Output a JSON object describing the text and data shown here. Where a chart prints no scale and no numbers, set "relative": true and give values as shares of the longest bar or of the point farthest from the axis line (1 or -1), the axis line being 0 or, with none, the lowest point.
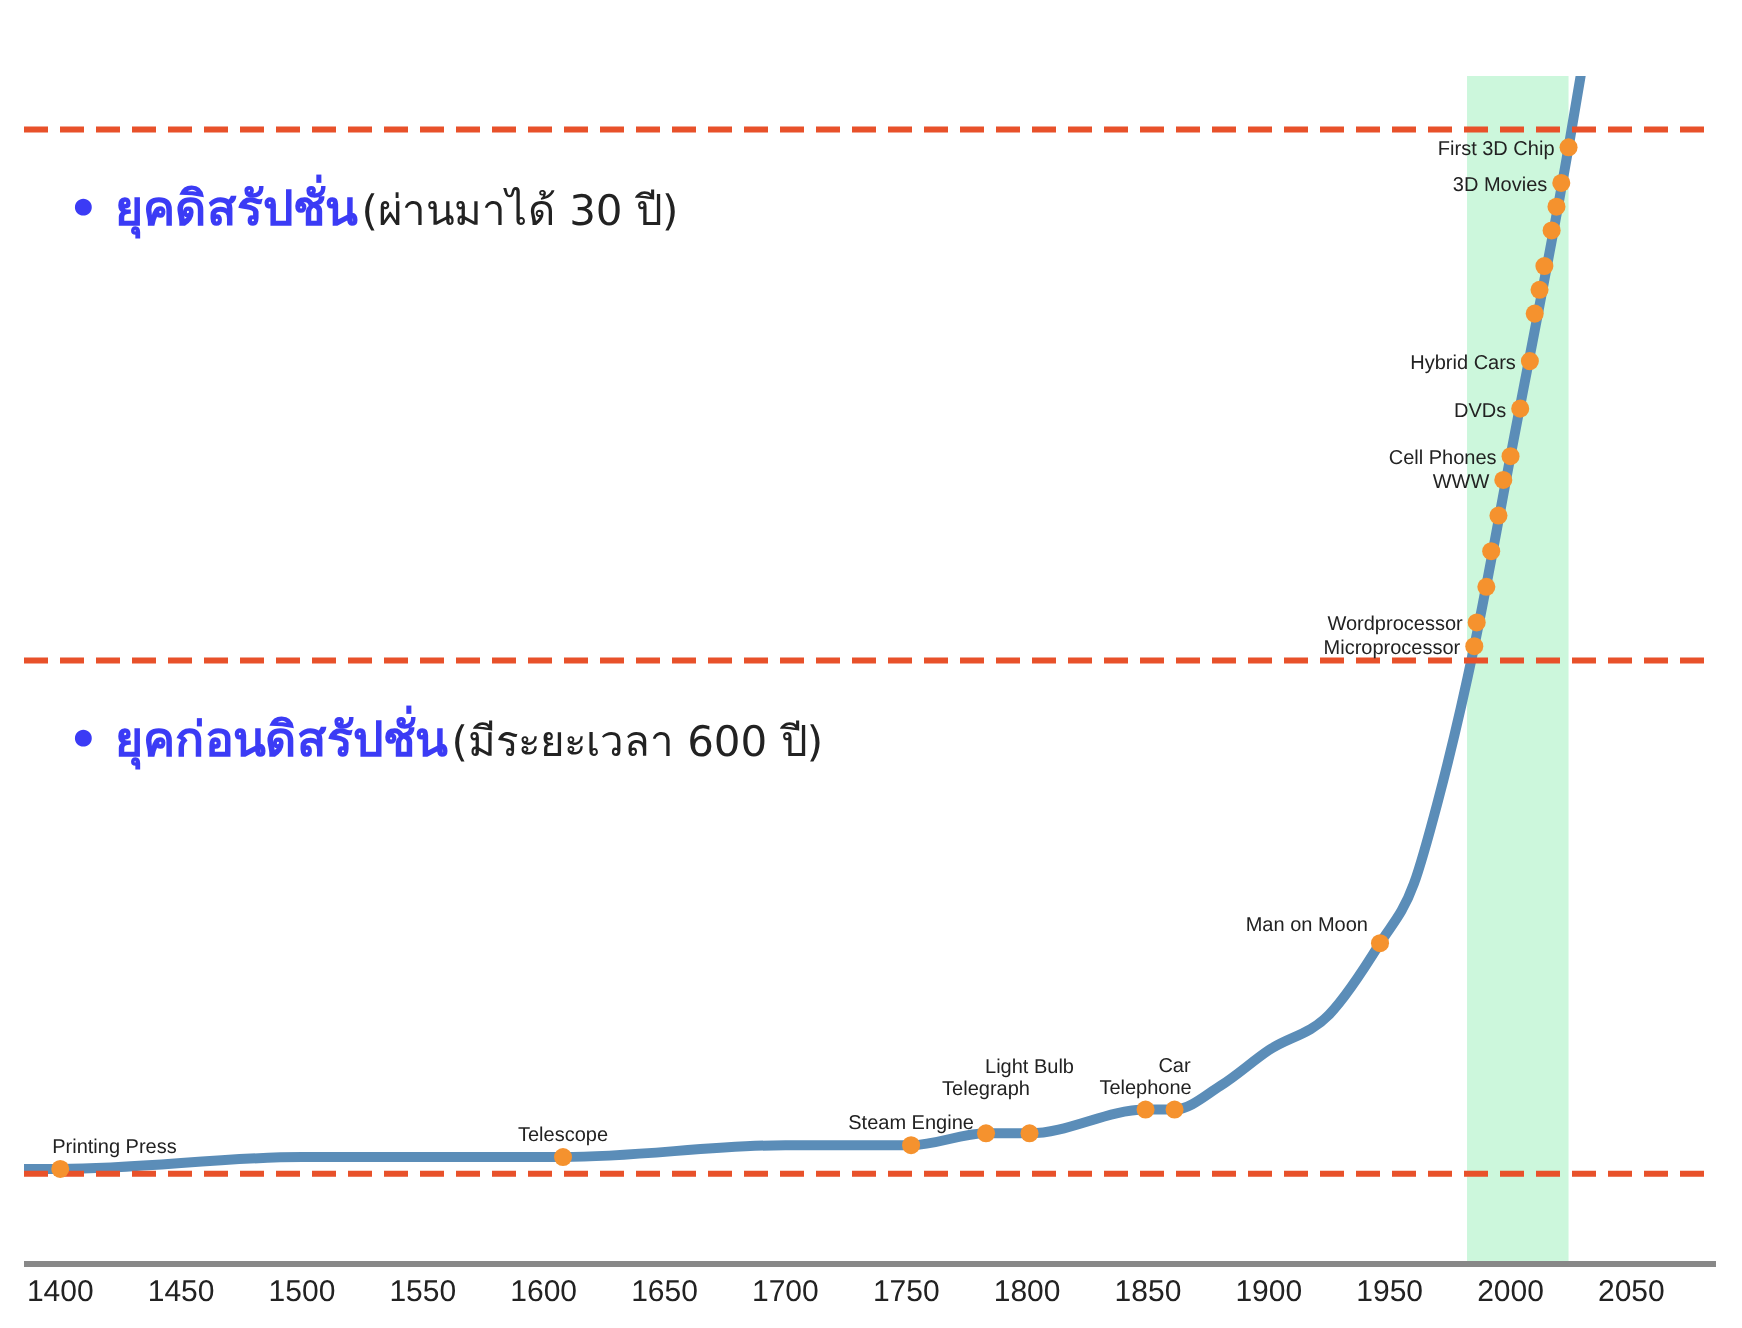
{
  "chart_data": {
    "type": "line",
    "relative": true,
    "xlim": [
      1385,
      2085
    ],
    "xticks": [
      1400,
      1450,
      1500,
      1550,
      1600,
      1650,
      1700,
      1750,
      1800,
      1850,
      1900,
      1950,
      2000,
      2050
    ],
    "legend": false,
    "grid": false,
    "series": [
      {
        "color": "#5b8db8",
        "marker": "none",
        "x": [
          1385,
          1400,
          1500,
          1608,
          1700,
          1752,
          1783,
          1801,
          1849,
          1861,
          1880,
          1900,
          1925,
          1946,
          1960,
          1970,
          1985,
          2000,
          2024,
          2029
        ],
        "values": [
          0.08,
          0.08,
          0.09,
          0.09,
          0.1,
          0.1,
          0.11,
          0.11,
          0.13,
          0.13,
          0.15,
          0.18,
          0.21,
          0.27,
          0.32,
          0.39,
          0.52,
          0.68,
          0.94,
          1
        ]
      },
      {
        "type": "scatter",
        "color": "#f5922e",
        "marker": "circle",
        "x": [
          1400,
          1608,
          1752,
          1783,
          1801,
          1849,
          1861,
          1946,
          1985,
          1986,
          1990,
          1992,
          1995,
          1997,
          2000,
          2004,
          2008,
          2010,
          2012,
          2014,
          2017,
          2019,
          2021,
          2024
        ],
        "values": [
          0.08,
          0.09,
          0.1,
          0.11,
          0.11,
          0.13,
          0.13,
          0.27,
          0.52,
          0.54,
          0.57,
          0.6,
          0.63,
          0.66,
          0.68,
          0.72,
          0.76,
          0.8,
          0.82,
          0.84,
          0.87,
          0.89,
          0.91,
          0.94
        ]
      }
    ],
    "ref_lines": [
      {
        "axis": "y",
        "value": 0.955,
        "color": "#e8512a",
        "line_style": "dashed"
      },
      {
        "axis": "y",
        "value": 0.508,
        "color": "#e8512a",
        "line_style": "dashed"
      },
      {
        "axis": "y",
        "value": 0.076,
        "color": "#e8512a",
        "line_style": "dashed"
      }
    ],
    "bands": [
      {
        "axis": "x",
        "from": 1982,
        "to": 2024,
        "color": "#ccf7dc"
      }
    ],
    "annotations": [
      "• ยุคดิสรัปชั่น",
      "(ผ่านมาได้ 30 ปี)",
      "• ยุคก่อนดิสรัปชั่น",
      "(มีระยะเวลา 600 ปี)",
      {
        "text": "Printing Press",
        "x": 1400,
        "y": 0.08
      },
      {
        "text": "Telescope",
        "x": 1608,
        "y": 0.09
      },
      {
        "text": "Steam Engine",
        "x": 1752,
        "y": 0.1
      },
      {
        "text": "Telegraph",
        "x": 1783,
        "y": 0.11
      },
      {
        "text": "Light Bulb",
        "x": 1801,
        "y": 0.11
      },
      {
        "text": "Telephone",
        "x": 1849,
        "y": 0.13
      },
      {
        "text": "Car",
        "x": 1861,
        "y": 0.13
      },
      {
        "text": "Man on Moon",
        "x": 1946,
        "y": 0.27
      },
      {
        "text": "Microprocessor",
        "x": 1985,
        "y": 0.52
      },
      {
        "text": "Wordprocessor",
        "x": 1986,
        "y": 0.54
      },
      {
        "text": "WWW",
        "x": 1997,
        "y": 0.66
      },
      {
        "text": "Cell Phones",
        "x": 2000,
        "y": 0.68
      },
      {
        "text": "DVDs",
        "x": 2004,
        "y": 0.72
      },
      {
        "text": "Hybrid Cars",
        "x": 2008,
        "y": 0.76
      },
      {
        "text": "3D Movies",
        "x": 2021,
        "y": 0.91
      },
      {
        "text": "First 3D Chip",
        "x": 2024,
        "y": 0.94
      }
    ]
  }
}
